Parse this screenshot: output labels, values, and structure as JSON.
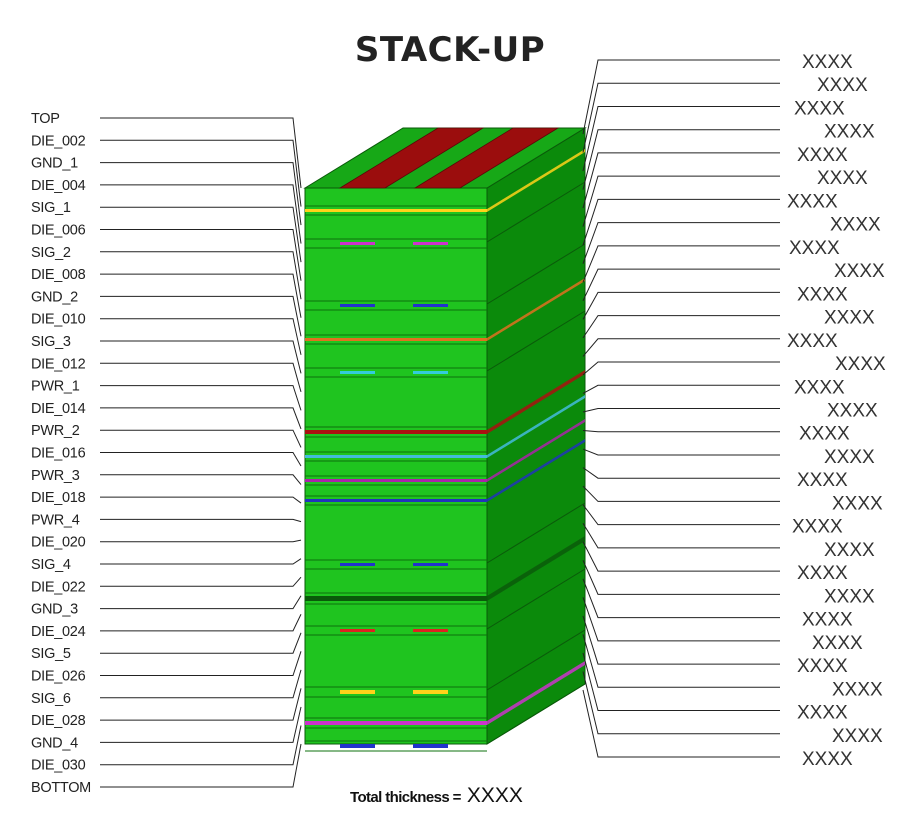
{
  "title": "STACK-UP",
  "left_layers": [
    "TOP",
    "DIE_002",
    "GND_1",
    "DIE_004",
    "SIG_1",
    "DIE_006",
    "SIG_2",
    "DIE_008",
    "GND_2",
    "DIE_010",
    "SIG_3",
    "DIE_012",
    "PWR_1",
    "DIE_014",
    "PWR_2",
    "DIE_016",
    "PWR_3",
    "DIE_018",
    "PWR_4",
    "DIE_020",
    "SIG_4",
    "DIE_022",
    "GND_3",
    "DIE_024",
    "SIG_5",
    "DIE_026",
    "SIG_6",
    "DIE_028",
    "GND_4",
    "DIE_030",
    "BOTTOM"
  ],
  "right_labels": [
    "XXXX",
    "XXXX",
    "XXXX",
    "XXXX",
    "XXXX",
    "XXXX",
    "XXXX",
    "XXXX",
    "XXXX",
    "XXXX",
    "XXXX",
    "XXXX",
    "XXXX",
    "XXXX",
    "XXXX",
    "XXXX",
    "XXXX",
    "XXXX",
    "XXXX",
    "XXXX",
    "XXXX",
    "XXXX",
    "XXXX",
    "XXXX",
    "XXXX",
    "XXXX",
    "XXXX",
    "XXXX",
    "XXXX",
    "XXXX",
    "XXXX"
  ],
  "total_thickness_label": "Total thickness =",
  "total_thickness_value": "XXXX",
  "colors": {
    "dielectric_front": "#1fc41f",
    "dielectric_side": "#0b8a0b",
    "dielectric_top": "#17a817",
    "copper_top": "#9b0d0d",
    "sig_1": "#ffd21a",
    "sig_2": "#cc33cc",
    "gnd_2": "#2233cc",
    "sig_3": "#e07020",
    "pwr_1_trace": "#33ccdd",
    "pwr_1": "#aa1111",
    "pwr_2": "#44bbdd",
    "pwr_3": "#aa22aa",
    "pwr_4": "#2233bb",
    "sig_4": "#2233cc",
    "gnd_3_plane": "#0a5a0a",
    "sig_5": "#dd2222",
    "sig_6_trace": "#ffd21a",
    "sig_6": "#cc33cc",
    "bottom": "#2233cc",
    "leader": "#222222"
  }
}
